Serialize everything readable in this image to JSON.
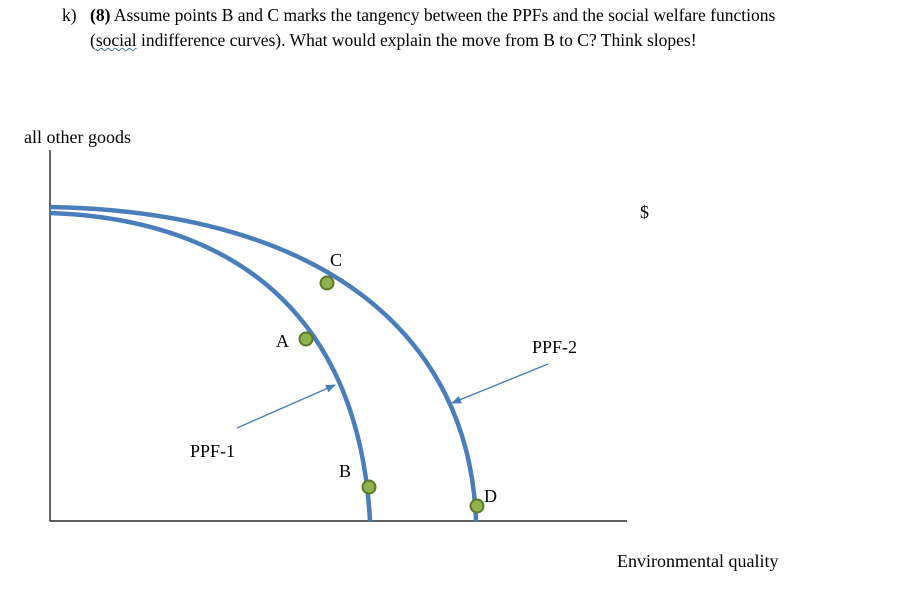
{
  "question": {
    "number": "k)",
    "points": "(8)",
    "line1_rest": " Assume points B and C marks the tangency between the PPFs and the social welfare functions",
    "line2_open": "(",
    "line2_underlined": "social",
    "line2_rest": " indifference curves).  What would explain the move from B to C? Think slopes!"
  },
  "diagram": {
    "y_axis_label": "all other goods",
    "x_axis_label": "Environmental quality",
    "dollar_sign": "$",
    "curves": [
      {
        "id": "ppf-1",
        "label": "PPF-1"
      },
      {
        "id": "ppf-2",
        "label": "PPF-2"
      }
    ],
    "points": [
      {
        "id": "A",
        "label": "A"
      },
      {
        "id": "B",
        "label": "B"
      },
      {
        "id": "C",
        "label": "C"
      },
      {
        "id": "D",
        "label": "D"
      }
    ],
    "colors": {
      "curve": "#4a7ebb",
      "point_fill": "#8fb24a",
      "point_stroke": "#5a7a2a",
      "axis": "#000000",
      "arrow": "#4a7ebb",
      "underline": "#4472c4"
    }
  }
}
